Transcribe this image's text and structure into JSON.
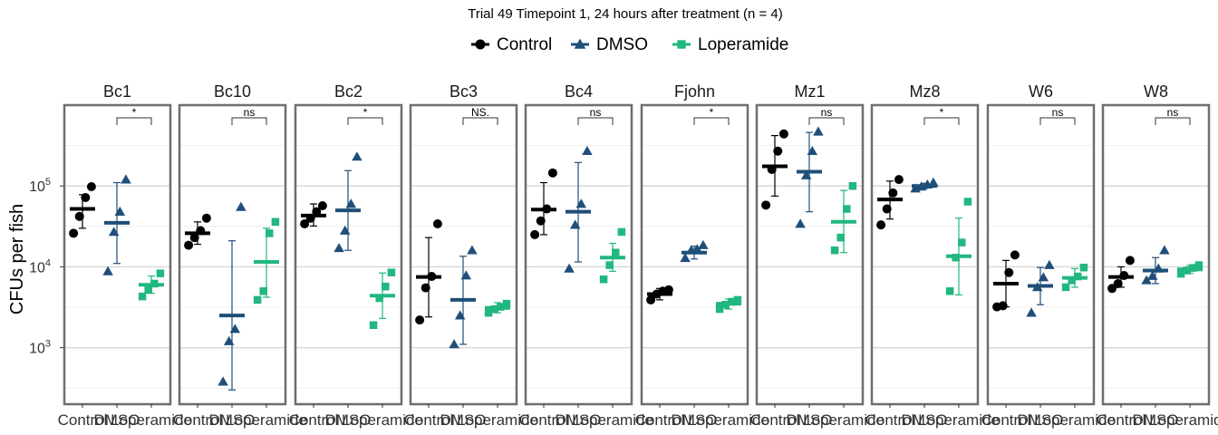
{
  "chart_data": {
    "type": "scatter",
    "title": "Trial 49 Timepoint 1, 24 hours after treatment (n = 4)",
    "ylabel": "CFUs per fish",
    "xlabel": "",
    "y_scale": "log10",
    "ylim": [
      200,
      1000000
    ],
    "y_ticks": [
      {
        "value": 1000,
        "base": "10",
        "exp": "3"
      },
      {
        "value": 10000,
        "base": "10",
        "exp": "4"
      },
      {
        "value": 100000,
        "base": "10",
        "exp": "5"
      }
    ],
    "grid": true,
    "legend_position": "top",
    "categories": [
      "Control",
      "DMSO",
      "Loperamide"
    ],
    "series": [
      {
        "name": "Control",
        "color": "#000000",
        "shape": "circle"
      },
      {
        "name": "DMSO",
        "color": "#1f4e79",
        "shape": "triangle"
      },
      {
        "name": "Loperamide",
        "color": "#21b77f",
        "shape": "square"
      }
    ],
    "panels": [
      {
        "label": "Bc1",
        "sig": "*",
        "groups": [
          {
            "mean": 52000,
            "lo": 30000,
            "hi": 78000,
            "points": [
              26000,
              42000,
              72000,
              98000
            ]
          },
          {
            "mean": 35000,
            "lo": 11000,
            "hi": 110000,
            "points": [
              8800,
              27000,
              48000,
              120000
            ]
          },
          {
            "mean": 6000,
            "lo": 4700,
            "hi": 7700,
            "points": [
              4300,
              5200,
              6200,
              8300
            ]
          }
        ]
      },
      {
        "label": "Bc10",
        "sig": "ns",
        "groups": [
          {
            "mean": 26000,
            "lo": 19000,
            "hi": 36000,
            "points": [
              18500,
              23000,
              28000,
              40000
            ]
          },
          {
            "mean": 2500,
            "lo": 300,
            "hi": 21000,
            "points": [
              380,
              1200,
              1700,
              55000
            ]
          },
          {
            "mean": 11500,
            "lo": 4200,
            "hi": 30000,
            "points": [
              3900,
              5000,
              26000,
              36000
            ]
          }
        ]
      },
      {
        "label": "Bc2",
        "sig": "*",
        "groups": [
          {
            "mean": 43000,
            "lo": 32000,
            "hi": 60000,
            "points": [
              34000,
              40000,
              48000,
              57000
            ]
          },
          {
            "mean": 50000,
            "lo": 16000,
            "hi": 155000,
            "points": [
              17000,
              28000,
              60000,
              230000
            ]
          },
          {
            "mean": 4400,
            "lo": 2300,
            "hi": 8400,
            "points": [
              1900,
              4100,
              5700,
              8500
            ]
          }
        ]
      },
      {
        "label": "Bc3",
        "sig": "NS.",
        "groups": [
          {
            "mean": 7500,
            "lo": 2400,
            "hi": 23000,
            "points": [
              2200,
              5500,
              7600,
              34000
            ]
          },
          {
            "mean": 3900,
            "lo": 1100,
            "hi": 13500,
            "points": [
              1100,
              2500,
              7800,
              16000
            ]
          },
          {
            "mean": 3100,
            "lo": 2700,
            "hi": 3600,
            "points": [
              2700,
              3000,
              3200,
              3500
            ]
          }
        ]
      },
      {
        "label": "Bc4",
        "sig": "ns",
        "groups": [
          {
            "mean": 51000,
            "lo": 25000,
            "hi": 110000,
            "points": [
              25000,
              37000,
              52000,
              145000
            ]
          },
          {
            "mean": 48000,
            "lo": 11500,
            "hi": 195000,
            "points": [
              9500,
              33000,
              60000,
              270000
            ]
          },
          {
            "mean": 13000,
            "lo": 8800,
            "hi": 19500,
            "points": [
              7000,
              10500,
              15000,
              27000
            ]
          }
        ]
      },
      {
        "label": "Fjohn",
        "sig": "*",
        "groups": [
          {
            "mean": 4600,
            "lo": 3900,
            "hi": 5400,
            "points": [
              3900,
              4600,
              5000,
              5200
            ]
          },
          {
            "mean": 15000,
            "lo": 12500,
            "hi": 18000,
            "points": [
              12800,
              16000,
              16500,
              18500
            ]
          },
          {
            "mean": 3500,
            "lo": 3000,
            "hi": 4000,
            "points": [
              3000,
              3400,
              3700,
              3900
            ]
          }
        ]
      },
      {
        "label": "Mz1",
        "sig": "ns",
        "groups": [
          {
            "mean": 175000,
            "lo": 75000,
            "hi": 420000,
            "points": [
              58000,
              160000,
              270000,
              440000
            ]
          },
          {
            "mean": 150000,
            "lo": 48000,
            "hi": 460000,
            "points": [
              34000,
              135000,
              270000,
              470000
            ]
          },
          {
            "mean": 36000,
            "lo": 15000,
            "hi": 88000,
            "points": [
              16000,
              23000,
              52000,
              100000
            ]
          }
        ]
      },
      {
        "label": "Mz8",
        "sig": "*",
        "groups": [
          {
            "mean": 68000,
            "lo": 39000,
            "hi": 115000,
            "points": [
              33000,
              52000,
              82000,
              120000
            ]
          },
          {
            "mean": 100000,
            "lo": 93000,
            "hi": 108000,
            "points": [
              93000,
              98000,
              104000,
              110000
            ]
          },
          {
            "mean": 13500,
            "lo": 4500,
            "hi": 40000,
            "points": [
              5000,
              13000,
              20000,
              64000
            ]
          }
        ]
      },
      {
        "label": "W6",
        "sig": "ns",
        "groups": [
          {
            "mean": 6200,
            "lo": 3200,
            "hi": 12000,
            "points": [
              3200,
              3300,
              8500,
              14000
            ]
          },
          {
            "mean": 5800,
            "lo": 3400,
            "hi": 9800,
            "points": [
              2700,
              5600,
              7400,
              10500
            ]
          },
          {
            "mean": 7300,
            "lo": 5600,
            "hi": 9500,
            "points": [
              5600,
              6800,
              7600,
              9800
            ]
          }
        ]
      },
      {
        "label": "W8",
        "sig": "ns",
        "groups": [
          {
            "mean": 7500,
            "lo": 5600,
            "hi": 10000,
            "points": [
              5400,
              6200,
              7800,
              12000
            ]
          },
          {
            "mean": 9000,
            "lo": 6200,
            "hi": 13000,
            "points": [
              6800,
              7700,
              9500,
              16000
            ]
          },
          {
            "mean": 9300,
            "lo": 8300,
            "hi": 10400,
            "points": [
              8200,
              9000,
              9700,
              10500
            ]
          }
        ]
      }
    ]
  }
}
